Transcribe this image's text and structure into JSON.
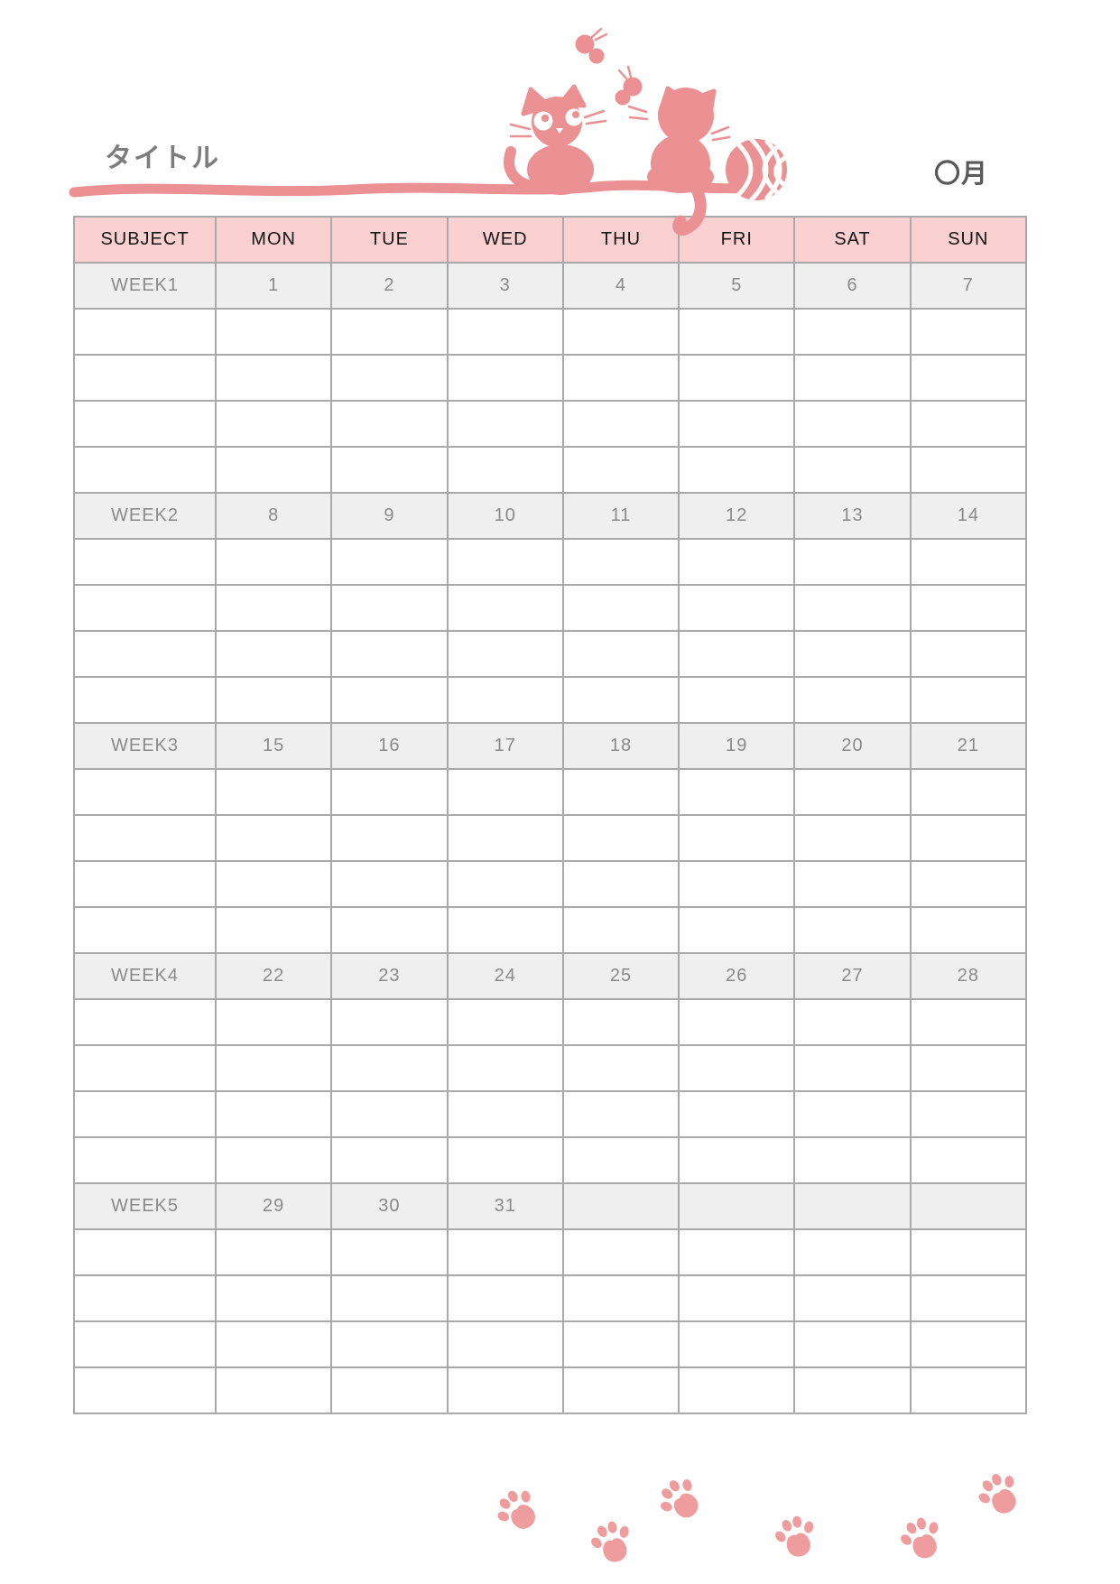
{
  "page": {
    "title": "タイトル",
    "month_label": "〇月"
  },
  "illustration": {
    "icons": [
      "cat-front-icon",
      "cat-back-icon",
      "butterfly-icon",
      "yarn-ball-icon",
      "ground-line",
      "paw-print-icon"
    ],
    "paw_print_count": 6,
    "pink": "#eb9093",
    "paw_pink": "#ee9c9e"
  },
  "table": {
    "columns": [
      "SUBJECT",
      "MON",
      "TUE",
      "WED",
      "THU",
      "FRI",
      "SAT",
      "SUN"
    ],
    "weeks": [
      {
        "label": "WEEK1",
        "days": [
          "1",
          "2",
          "3",
          "4",
          "5",
          "6",
          "7"
        ],
        "empty_rows": 4
      },
      {
        "label": "WEEK2",
        "days": [
          "8",
          "9",
          "10",
          "11",
          "12",
          "13",
          "14"
        ],
        "empty_rows": 4
      },
      {
        "label": "WEEK3",
        "days": [
          "15",
          "16",
          "17",
          "18",
          "19",
          "20",
          "21"
        ],
        "empty_rows": 4
      },
      {
        "label": "WEEK4",
        "days": [
          "22",
          "23",
          "24",
          "25",
          "26",
          "27",
          "28"
        ],
        "empty_rows": 4
      },
      {
        "label": "WEEK5",
        "days": [
          "29",
          "30",
          "31",
          "",
          "",
          "",
          ""
        ],
        "empty_rows": 4
      }
    ]
  },
  "colors": {
    "header_bg": "#fbd0d0",
    "header_text": "#141414",
    "week_row_bg": "#efefef",
    "muted_text": "#8a8a8a",
    "grid_line": "#a9a9a9",
    "outer_border": "#8a8a8a",
    "title_text": "#7d7d7d",
    "month_text": "#595959",
    "illustration_pink": "#eb9093"
  }
}
